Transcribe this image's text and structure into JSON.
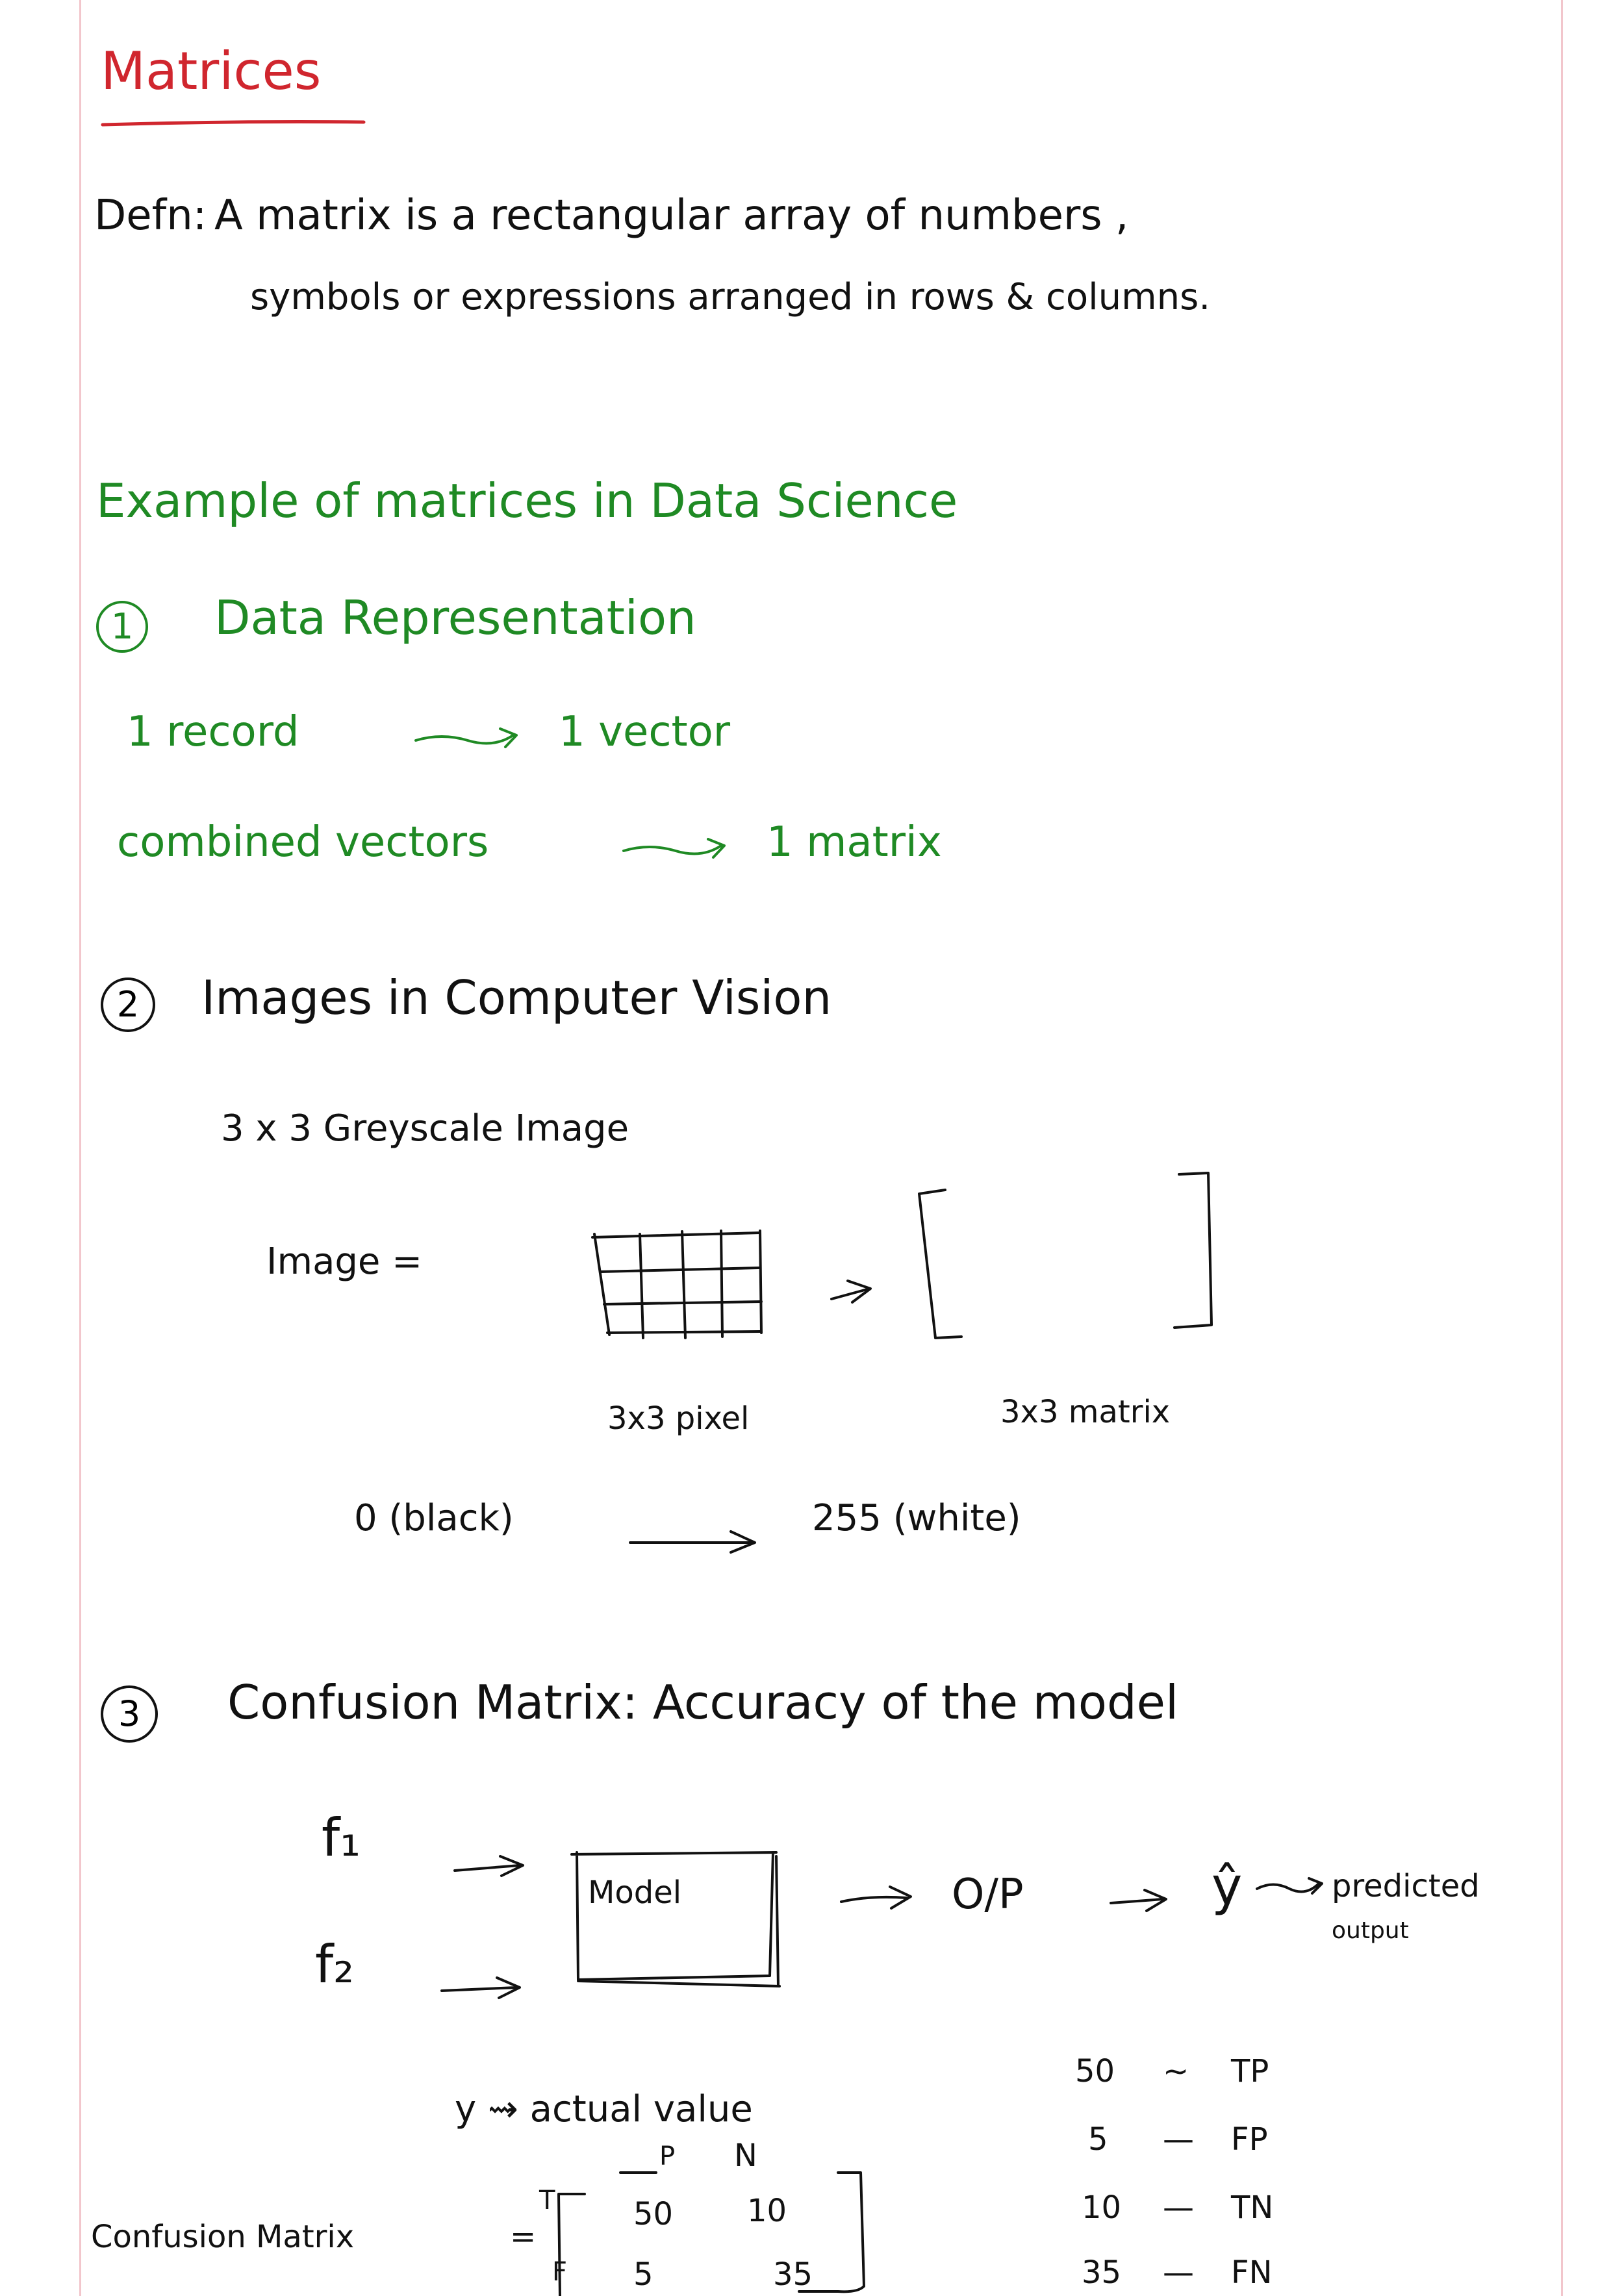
{
  "title": "Matrices",
  "definition": {
    "label": "Defn:",
    "line1": "A matrix is a rectangular array of numbers ,",
    "line2": "symbols or expressions arranged in rows & columns."
  },
  "examples": {
    "heading": "Example of matrices in Data Science",
    "s1": {
      "num": "1",
      "title": "Data Representation",
      "l1_left": "1 record",
      "l1_right": "1 vector",
      "l2_left": "combined vectors",
      "l2_right": "1 matrix"
    },
    "s2": {
      "num": "2",
      "title": "Images in Computer Vision",
      "subtitle": "3 x 3   Greyscale Image",
      "image_eq": "Image =",
      "pixel_label": "3x3 pixel",
      "matrix_label": "3x3 matrix",
      "range_left": "0 (black)",
      "range_right": "255 (white)"
    },
    "s3": {
      "num": "3",
      "title": "Confusion Matrix: Accuracy of the model",
      "f1": "f₁",
      "f2": "f₂",
      "model": "Model",
      "op": "O/P",
      "yhat": "ŷ",
      "pred1": "predicted",
      "pred2": "output",
      "actual": "y ⇝ actual value",
      "col_p": "P",
      "col_n": "N",
      "row_t": "T",
      "row_f": "F",
      "cm_label": "Confusion Matrix",
      "eq": "=",
      "cells": [
        "50",
        "10",
        "5",
        "35"
      ],
      "legend": [
        {
          "value": "50",
          "dash": "~",
          "label": "TP"
        },
        {
          "value": "5",
          "dash": "—",
          "label": "FP"
        },
        {
          "value": "10",
          "dash": "—",
          "label": "TN"
        },
        {
          "value": "35",
          "dash": "—",
          "label": "FN"
        }
      ]
    }
  },
  "colors": {
    "ink": "#111111",
    "title": "#d0262e",
    "heading": "#1f8a24",
    "margin_line": "#f2c6cc"
  }
}
